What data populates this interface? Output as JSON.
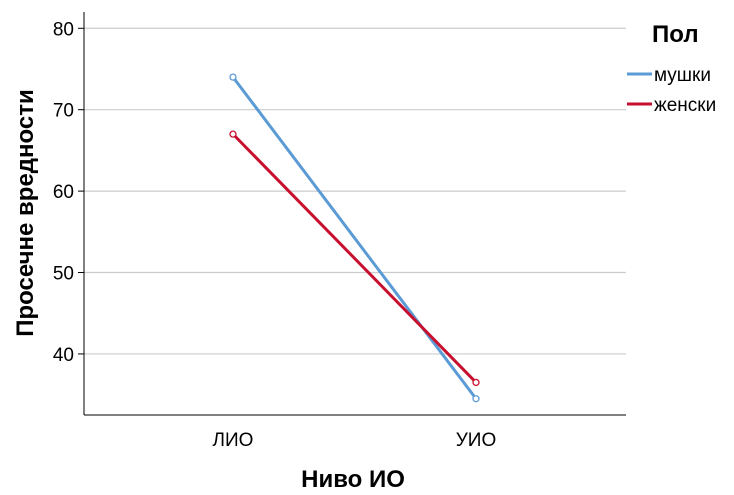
{
  "chart_data": {
    "type": "line",
    "categories": [
      "ЛИО",
      "УИО"
    ],
    "series": [
      {
        "name": "мушки",
        "values": [
          74,
          34.5
        ],
        "color": "#5b9bd5"
      },
      {
        "name": "женски",
        "values": [
          67,
          36.5
        ],
        "color": "#c8102e"
      }
    ],
    "xlabel": "Ниво ИО",
    "ylabel": "Просечне вредности",
    "ylim": [
      32.5,
      82
    ],
    "yticks": [
      40,
      50,
      60,
      70,
      80
    ],
    "grid": true,
    "legend": {
      "title": "Пол",
      "placement": "right"
    },
    "gridline_color": "#cccccc",
    "axis_color": "#000000"
  }
}
